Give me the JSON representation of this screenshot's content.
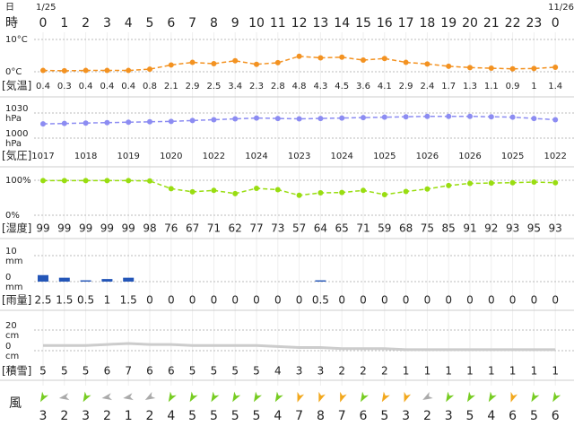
{
  "header": {
    "day_label": "日",
    "hour_label": "時",
    "dates": [
      "1/25",
      "11/26"
    ],
    "hours": [
      "0",
      "1",
      "2",
      "3",
      "4",
      "5",
      "6",
      "7",
      "8",
      "9",
      "10",
      "11",
      "12",
      "13",
      "14",
      "15",
      "16",
      "17",
      "18",
      "19",
      "20",
      "21",
      "22",
      "23",
      "0"
    ]
  },
  "chart_data": [
    {
      "type": "line",
      "name": "[気温]",
      "color": "#f39221",
      "values": [
        0.4,
        0.3,
        0.4,
        0.4,
        0.4,
        0.8,
        2.1,
        2.9,
        2.5,
        3.4,
        2.3,
        2.8,
        4.8,
        4.3,
        4.5,
        3.6,
        4.1,
        2.9,
        2.4,
        1.7,
        1.3,
        1.1,
        0.9,
        1,
        1.4
      ],
      "ylim": [
        0,
        10
      ],
      "yticks": [
        {
          "value": 0,
          "label": "0°C"
        },
        {
          "value": 10,
          "label": "10°C"
        }
      ],
      "grid": true
    },
    {
      "type": "line",
      "name": "[気圧]",
      "color": "#8c8cf2",
      "unit": "hPa",
      "values": [
        1017,
        1017.5,
        1018,
        1018.5,
        1019,
        1019.5,
        1020,
        1021,
        1022,
        1023,
        1024,
        1023.5,
        1023,
        1023.5,
        1024,
        1024.5,
        1025,
        1025.5,
        1026,
        1026,
        1026,
        1025.5,
        1025,
        1023.5,
        1022
      ],
      "value_labels": [
        "1017",
        null,
        "1018",
        null,
        "1019",
        null,
        "1020",
        null,
        "1022",
        null,
        "1024",
        null,
        "1023",
        null,
        "1024",
        null,
        "1025",
        null,
        "1026",
        null,
        "1026",
        null,
        "1025",
        null,
        "1022"
      ],
      "ylim": [
        1000,
        1030
      ],
      "yticks": [
        1000,
        1030
      ],
      "grid": true
    },
    {
      "type": "line",
      "name": "[湿度]",
      "color": "#99dd11",
      "values": [
        99,
        99,
        99,
        99,
        99,
        98,
        76,
        67,
        71,
        62,
        77,
        73,
        57,
        64,
        65,
        71,
        59,
        68,
        75,
        85,
        91,
        92,
        93,
        95,
        93
      ],
      "ylim": [
        0,
        100
      ],
      "yticks": [
        {
          "value": 0,
          "label": "0%"
        },
        {
          "value": 100,
          "label": "100%"
        }
      ],
      "grid": true
    },
    {
      "type": "bar",
      "name": "[雨量]",
      "color": "#2456b8",
      "unit": "mm",
      "values": [
        2.5,
        1.5,
        0.5,
        1,
        1.5,
        0,
        0,
        0,
        0,
        0,
        0,
        0,
        0,
        0.5,
        0,
        0,
        0,
        0,
        0,
        0,
        0,
        0,
        0,
        0,
        0
      ],
      "ylim": [
        0,
        10
      ],
      "yticks": [
        0,
        10
      ],
      "grid": true
    },
    {
      "type": "area",
      "name": "[積雪]",
      "color": "#cccccc",
      "unit": "cm",
      "values": [
        5,
        5,
        5,
        6,
        7,
        6,
        6,
        5,
        5,
        5,
        5,
        4,
        3,
        3,
        2,
        2,
        2,
        1,
        1,
        1,
        1,
        1,
        1,
        1,
        1
      ],
      "ylim": [
        0,
        20
      ],
      "yticks": [
        0,
        20
      ],
      "grid": true
    },
    {
      "type": "wind",
      "name": "風",
      "values": [
        3,
        2,
        3,
        2,
        1,
        2,
        4,
        5,
        5,
        5,
        5,
        4,
        7,
        8,
        7,
        6,
        5,
        3,
        2,
        3,
        5,
        4,
        6,
        5,
        6
      ],
      "directions": [
        30,
        80,
        30,
        80,
        80,
        60,
        30,
        30,
        30,
        30,
        30,
        30,
        20,
        20,
        20,
        30,
        30,
        20,
        60,
        30,
        30,
        30,
        20,
        30,
        30
      ],
      "colors": [
        "#77cc22",
        "#aaaaaa",
        "#77cc22",
        "#aaaaaa",
        "#aaaaaa",
        "#aaaaaa",
        "#77cc22",
        "#77cc22",
        "#77cc22",
        "#77cc22",
        "#77cc22",
        "#77cc22",
        "#f2a81d",
        "#f2a81d",
        "#f2a81d",
        "#77cc22",
        "#f2a81d",
        "#f2a81d",
        "#aaaaaa",
        "#77cc22",
        "#77cc22",
        "#77cc22",
        "#f2a81d",
        "#77cc22",
        "#77cc22"
      ]
    }
  ]
}
